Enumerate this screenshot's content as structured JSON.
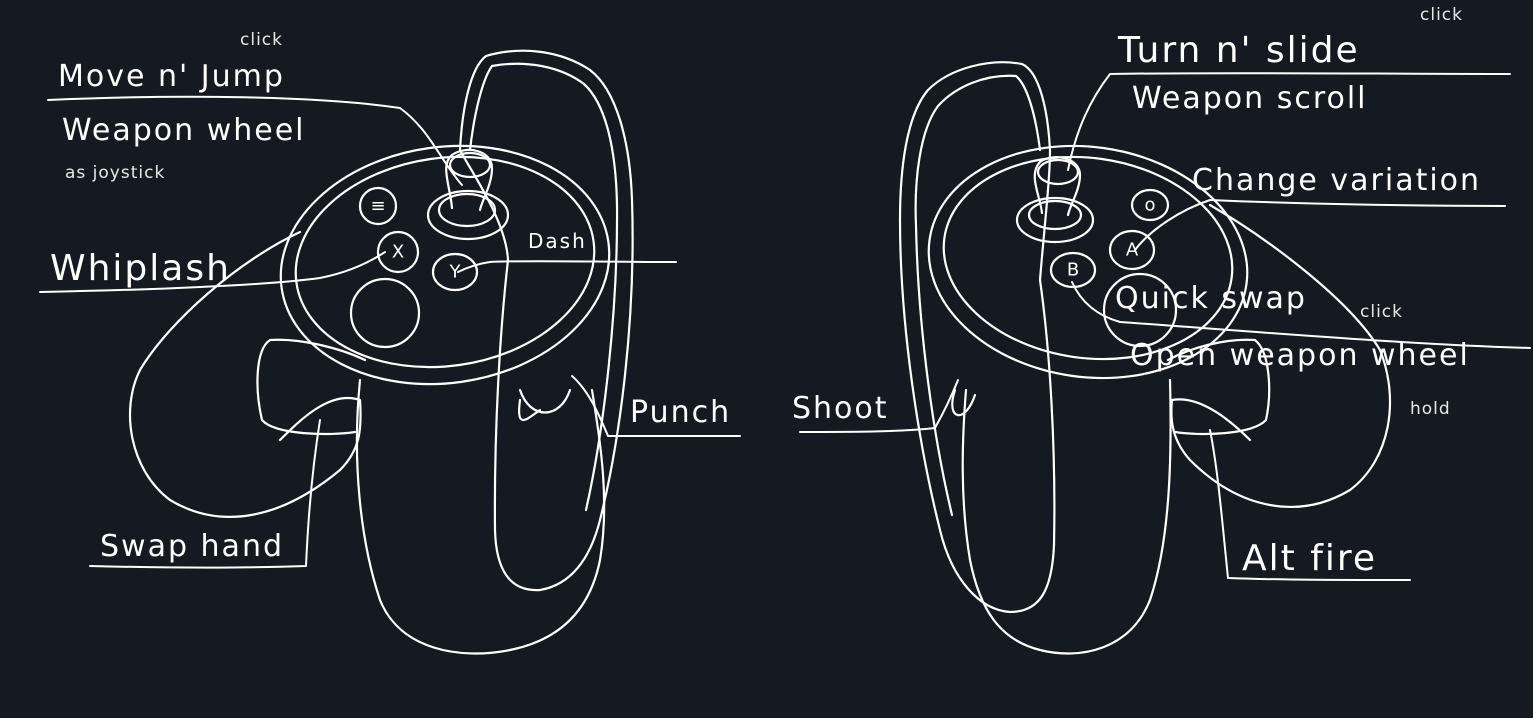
{
  "left_controller": {
    "labels": {
      "move_jump": "Move n' Jump",
      "move_jump_note": "click",
      "weapon_wheel": "Weapon wheel",
      "weapon_wheel_note": "as joystick",
      "whiplash": "Whiplash",
      "dash": "Dash",
      "punch": "Punch",
      "swap_hand": "Swap hand"
    },
    "buttons": {
      "menu": "≡",
      "x": "X",
      "y": "Y"
    }
  },
  "right_controller": {
    "labels": {
      "turn_slide": "Turn n' slide",
      "turn_slide_note": "click",
      "weapon_scroll": "Weapon scroll",
      "change_variation": "Change variation",
      "quick_swap": "Quick swap",
      "quick_swap_note": "click",
      "open_weapon_wheel": "Open weapon wheel",
      "open_weapon_wheel_note": "hold",
      "shoot": "Shoot",
      "alt_fire": "Alt fire"
    },
    "buttons": {
      "oculus": "o",
      "a": "A",
      "b": "B"
    }
  },
  "colors": {
    "background": "#151a22",
    "ink": "#ffffff"
  }
}
